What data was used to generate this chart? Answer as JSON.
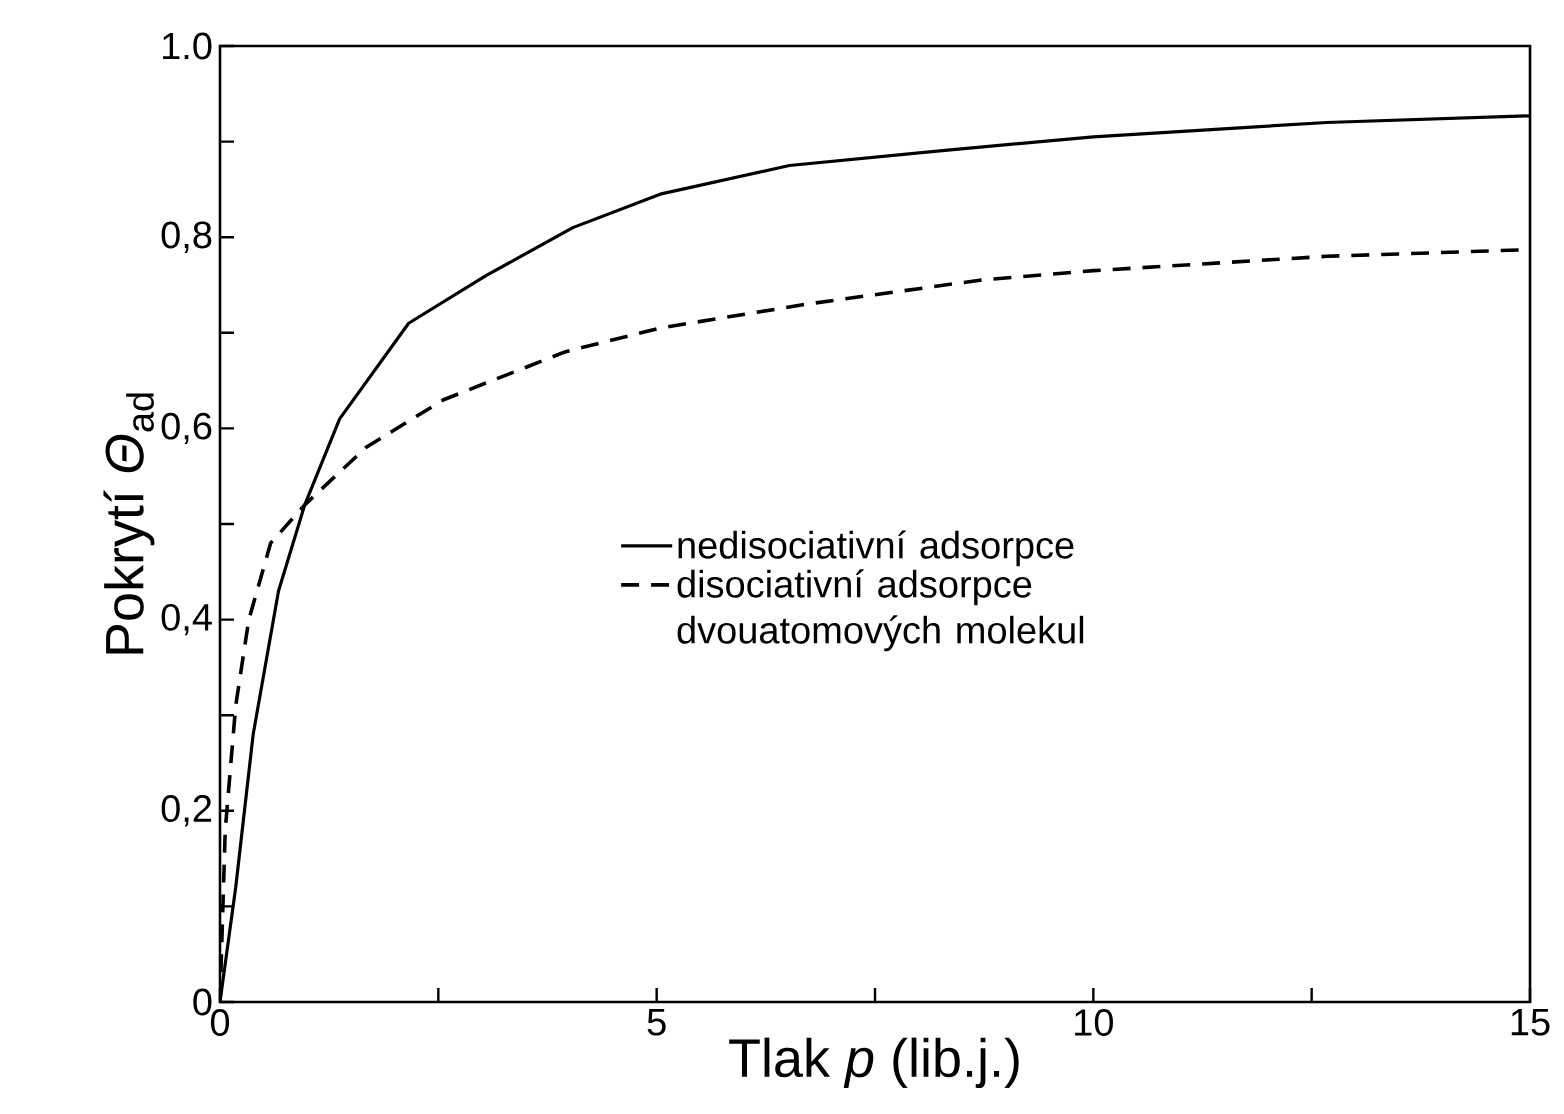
{
  "chart_data": {
    "type": "line",
    "xlabel": "Tlak *p* (lib.j.)",
    "ylabel": "Pokrytí *Θ*$_{ad}$",
    "xlim": [
      0,
      15
    ],
    "ylim": [
      0,
      1
    ],
    "xticks": [
      0,
      {
        "value": 2.5,
        "label": null
      },
      5,
      {
        "value": 7.5,
        "label": null
      },
      10,
      {
        "value": 12.5,
        "label": null
      },
      15
    ],
    "yticks": [
      0,
      {
        "value": 0.1,
        "label": null
      },
      {
        "value": 0.2,
        "label": "0,2"
      },
      {
        "value": 0.3,
        "label": null
      },
      {
        "value": 0.4,
        "label": "0,4"
      },
      {
        "value": 0.5,
        "label": null
      },
      {
        "value": 0.6,
        "label": "0,6"
      },
      {
        "value": 0.7,
        "label": null
      },
      {
        "value": 0.8,
        "label": "0,8"
      },
      {
        "value": 0.9,
        "label": null
      },
      {
        "value": 1,
        "label": "1.0"
      }
    ],
    "grid": false,
    "legend": "center",
    "marker": "none",
    "series": [
      {
        "name": "nedisociativní adsorpce",
        "color": "#000000",
        "line_style": "solid",
        "x": [
          0,
          0.18,
          0.38,
          0.67,
          0.97,
          1.37,
          2.16,
          3.05,
          4.04,
          5.04,
          6.52,
          8.21,
          10,
          12.67,
          15
        ],
        "values": [
          0,
          0.12,
          0.28,
          0.43,
          0.52,
          0.61,
          0.71,
          0.76,
          0.81,
          0.845,
          0.875,
          0.89,
          0.905,
          0.92,
          0.927
        ]
      },
      {
        "name": "disociativní adsorpce dvouatomových molekul",
        "color": "#000000",
        "line_style": "dashed",
        "x": [
          0,
          0.06,
          0.18,
          0.33,
          0.58,
          0.97,
          1.67,
          2.56,
          3.95,
          5.04,
          6.72,
          8.7,
          10,
          12.67,
          15
        ],
        "values": [
          0,
          0.18,
          0.31,
          0.4,
          0.48,
          0.52,
          0.58,
          0.63,
          0.68,
          0.705,
          0.73,
          0.755,
          0.765,
          0.78,
          0.787
        ]
      }
    ]
  }
}
